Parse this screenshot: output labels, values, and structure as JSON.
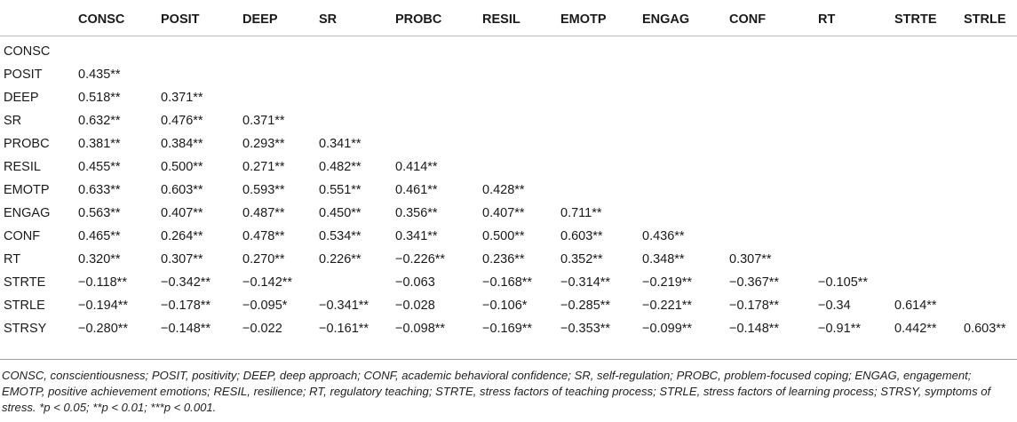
{
  "table": {
    "headers": [
      "",
      "CONSC",
      "POSIT",
      "DEEP",
      "SR",
      "PROBC",
      "RESIL",
      "EMOTP",
      "ENGAG",
      "CONF",
      "RT",
      "STRTE",
      "STRLE"
    ],
    "rows": [
      [
        "CONSC",
        "",
        "",
        "",
        "",
        "",
        "",
        "",
        "",
        "",
        "",
        "",
        ""
      ],
      [
        "POSIT",
        "0.435**",
        "",
        "",
        "",
        "",
        "",
        "",
        "",
        "",
        "",
        "",
        ""
      ],
      [
        "DEEP",
        "0.518**",
        "0.371**",
        "",
        "",
        "",
        "",
        "",
        "",
        "",
        "",
        "",
        ""
      ],
      [
        "SR",
        "0.632**",
        "0.476**",
        "0.371**",
        "",
        "",
        "",
        "",
        "",
        "",
        "",
        "",
        ""
      ],
      [
        "PROBC",
        "0.381**",
        "0.384**",
        "0.293**",
        "0.341**",
        "",
        "",
        "",
        "",
        "",
        "",
        "",
        ""
      ],
      [
        "RESIL",
        "0.455**",
        "0.500**",
        "0.271**",
        "0.482**",
        "0.414**",
        "",
        "",
        "",
        "",
        "",
        "",
        ""
      ],
      [
        "EMOTP",
        "0.633**",
        "0.603**",
        "0.593**",
        "0.551**",
        "0.461**",
        "0.428**",
        "",
        "",
        "",
        "",
        "",
        ""
      ],
      [
        "ENGAG",
        "0.563**",
        "0.407**",
        "0.487**",
        "0.450**",
        "0.356**",
        "0.407**",
        "0.711**",
        "",
        "",
        "",
        "",
        ""
      ],
      [
        "CONF",
        "0.465**",
        "0.264**",
        "0.478**",
        "0.534**",
        "0.341**",
        "0.500**",
        "0.603**",
        "0.436**",
        "",
        "",
        "",
        ""
      ],
      [
        "RT",
        "0.320**",
        "0.307**",
        "0.270**",
        "0.226**",
        "−0.226**",
        "0.236**",
        "0.352**",
        "0.348**",
        "0.307**",
        "",
        "",
        ""
      ],
      [
        "STRTE",
        "−0.118**",
        "−0.342**",
        "−0.142**",
        "",
        "−0.063",
        "−0.168**",
        "−0.314**",
        "−0.219**",
        "−0.367**",
        "−0.105**",
        "",
        ""
      ],
      [
        "STRLE",
        "−0.194**",
        "−0.178**",
        "−0.095*",
        "−0.341**",
        "−0.028",
        "−0.106*",
        "−0.285**",
        "−0.221**",
        "−0.178**",
        "−0.34",
        "0.614**",
        ""
      ],
      [
        "STRSY",
        "−0.280**",
        "−0.148**",
        "−0.022",
        "−0.161**",
        "−0.098**",
        "−0.169**",
        "−0.353**",
        "−0.099**",
        "−0.148**",
        "−0.91**",
        "0.442**",
        "0.603**"
      ]
    ]
  },
  "footnote": "CONSC, conscientiousness; POSIT, positivity; DEEP, deep approach; CONF, academic behavioral confidence; SR, self-regulation; PROBC, problem-focused coping; ENGAG, engagement; EMOTP, positive achievement emotions; RESIL, resilience; RT, regulatory teaching; STRTE, stress factors of teaching process; STRLE, stress factors of learning process; STRSY, symptoms of stress. *p < 0.05; **p < 0.01; ***p < 0.001."
}
